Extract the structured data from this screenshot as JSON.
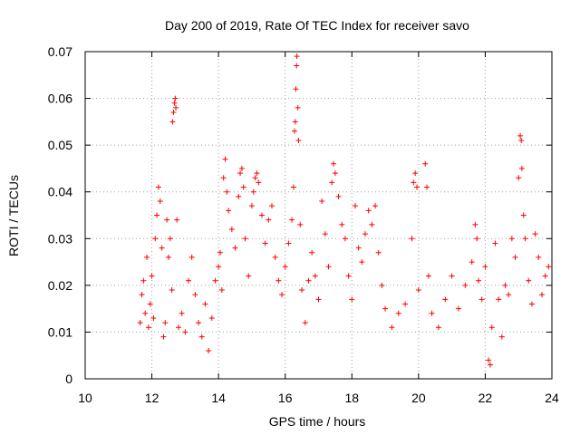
{
  "chart_data": {
    "type": "scatter",
    "title": "Day 200 of 2019, Rate Of TEC Index for receiver savo",
    "xlabel": "GPS time / hours",
    "ylabel": "ROTI / TECUs",
    "xlim": [
      10,
      24
    ],
    "ylim": [
      0,
      0.07
    ],
    "x_ticks": [
      10,
      12,
      14,
      16,
      18,
      20,
      22,
      24
    ],
    "y_ticks": [
      0,
      0.01,
      0.02,
      0.03,
      0.04,
      0.05,
      0.06,
      0.07
    ],
    "x_tick_labels": [
      "10",
      "12",
      "14",
      "16",
      "18",
      "20",
      "22",
      "24"
    ],
    "y_tick_labels": [
      "0",
      "0.01",
      "0.02",
      "0.03",
      "0.04",
      "0.05",
      "0.06",
      "0.07"
    ],
    "grid": true,
    "marker": "plus",
    "color": "#ff0000",
    "points": [
      [
        11.65,
        0.012
      ],
      [
        11.7,
        0.018
      ],
      [
        11.75,
        0.021
      ],
      [
        11.8,
        0.014
      ],
      [
        11.85,
        0.026
      ],
      [
        11.9,
        0.011
      ],
      [
        11.95,
        0.016
      ],
      [
        12.0,
        0.022
      ],
      [
        12.05,
        0.013
      ],
      [
        12.1,
        0.03
      ],
      [
        12.15,
        0.035
      ],
      [
        12.2,
        0.041
      ],
      [
        12.25,
        0.038
      ],
      [
        12.3,
        0.028
      ],
      [
        12.35,
        0.009
      ],
      [
        12.4,
        0.012
      ],
      [
        12.45,
        0.034
      ],
      [
        12.5,
        0.026
      ],
      [
        12.55,
        0.03
      ],
      [
        12.6,
        0.019
      ],
      [
        12.62,
        0.055
      ],
      [
        12.65,
        0.057
      ],
      [
        12.68,
        0.059
      ],
      [
        12.7,
        0.06
      ],
      [
        12.72,
        0.058
      ],
      [
        12.75,
        0.034
      ],
      [
        12.8,
        0.011
      ],
      [
        12.9,
        0.014
      ],
      [
        13.0,
        0.01
      ],
      [
        13.1,
        0.021
      ],
      [
        13.2,
        0.026
      ],
      [
        13.3,
        0.018
      ],
      [
        13.4,
        0.012
      ],
      [
        13.5,
        0.009
      ],
      [
        13.6,
        0.016
      ],
      [
        13.7,
        0.006
      ],
      [
        13.8,
        0.013
      ],
      [
        13.9,
        0.021
      ],
      [
        14.0,
        0.024
      ],
      [
        14.05,
        0.027
      ],
      [
        14.1,
        0.019
      ],
      [
        14.15,
        0.043
      ],
      [
        14.2,
        0.047
      ],
      [
        14.25,
        0.04
      ],
      [
        14.3,
        0.036
      ],
      [
        14.4,
        0.032
      ],
      [
        14.5,
        0.028
      ],
      [
        14.6,
        0.039
      ],
      [
        14.65,
        0.044
      ],
      [
        14.7,
        0.045
      ],
      [
        14.75,
        0.041
      ],
      [
        14.8,
        0.03
      ],
      [
        14.9,
        0.022
      ],
      [
        15.0,
        0.037
      ],
      [
        15.05,
        0.04
      ],
      [
        15.1,
        0.043
      ],
      [
        15.15,
        0.044
      ],
      [
        15.2,
        0.042
      ],
      [
        15.3,
        0.035
      ],
      [
        15.4,
        0.029
      ],
      [
        15.5,
        0.034
      ],
      [
        15.6,
        0.037
      ],
      [
        15.7,
        0.026
      ],
      [
        15.8,
        0.021
      ],
      [
        15.9,
        0.018
      ],
      [
        16.0,
        0.024
      ],
      [
        16.1,
        0.029
      ],
      [
        16.2,
        0.034
      ],
      [
        16.25,
        0.041
      ],
      [
        16.28,
        0.053
      ],
      [
        16.3,
        0.055
      ],
      [
        16.32,
        0.062
      ],
      [
        16.34,
        0.067
      ],
      [
        16.35,
        0.069
      ],
      [
        16.38,
        0.058
      ],
      [
        16.4,
        0.051
      ],
      [
        16.45,
        0.033
      ],
      [
        16.5,
        0.019
      ],
      [
        16.6,
        0.012
      ],
      [
        16.7,
        0.021
      ],
      [
        16.8,
        0.027
      ],
      [
        16.9,
        0.022
      ],
      [
        17.0,
        0.017
      ],
      [
        17.1,
        0.038
      ],
      [
        17.2,
        0.031
      ],
      [
        17.3,
        0.024
      ],
      [
        17.4,
        0.042
      ],
      [
        17.45,
        0.046
      ],
      [
        17.5,
        0.044
      ],
      [
        17.6,
        0.039
      ],
      [
        17.7,
        0.033
      ],
      [
        17.8,
        0.03
      ],
      [
        17.9,
        0.022
      ],
      [
        18.0,
        0.017
      ],
      [
        18.1,
        0.037
      ],
      [
        18.2,
        0.028
      ],
      [
        18.3,
        0.025
      ],
      [
        18.4,
        0.031
      ],
      [
        18.5,
        0.036
      ],
      [
        18.6,
        0.033
      ],
      [
        18.7,
        0.037
      ],
      [
        18.8,
        0.027
      ],
      [
        18.9,
        0.02
      ],
      [
        19.0,
        0.015
      ],
      [
        19.2,
        0.011
      ],
      [
        19.4,
        0.014
      ],
      [
        19.6,
        0.016
      ],
      [
        19.8,
        0.03
      ],
      [
        19.85,
        0.042
      ],
      [
        19.9,
        0.044
      ],
      [
        19.95,
        0.041
      ],
      [
        20.0,
        0.019
      ],
      [
        20.2,
        0.046
      ],
      [
        20.25,
        0.041
      ],
      [
        20.3,
        0.022
      ],
      [
        20.4,
        0.014
      ],
      [
        20.6,
        0.011
      ],
      [
        20.8,
        0.017
      ],
      [
        21.0,
        0.022
      ],
      [
        21.2,
        0.015
      ],
      [
        21.4,
        0.02
      ],
      [
        21.6,
        0.025
      ],
      [
        21.7,
        0.033
      ],
      [
        21.75,
        0.03
      ],
      [
        21.8,
        0.021
      ],
      [
        21.9,
        0.017
      ],
      [
        22.0,
        0.024
      ],
      [
        22.1,
        0.004
      ],
      [
        22.15,
        0.003
      ],
      [
        22.2,
        0.011
      ],
      [
        22.3,
        0.029
      ],
      [
        22.4,
        0.017
      ],
      [
        22.5,
        0.009
      ],
      [
        22.6,
        0.02
      ],
      [
        22.7,
        0.018
      ],
      [
        22.8,
        0.03
      ],
      [
        22.9,
        0.026
      ],
      [
        23.0,
        0.043
      ],
      [
        23.05,
        0.052
      ],
      [
        23.08,
        0.051
      ],
      [
        23.1,
        0.045
      ],
      [
        23.15,
        0.035
      ],
      [
        23.2,
        0.03
      ],
      [
        23.3,
        0.021
      ],
      [
        23.4,
        0.016
      ],
      [
        23.5,
        0.031
      ],
      [
        23.6,
        0.026
      ],
      [
        23.7,
        0.018
      ],
      [
        23.8,
        0.022
      ],
      [
        23.9,
        0.024
      ]
    ]
  }
}
